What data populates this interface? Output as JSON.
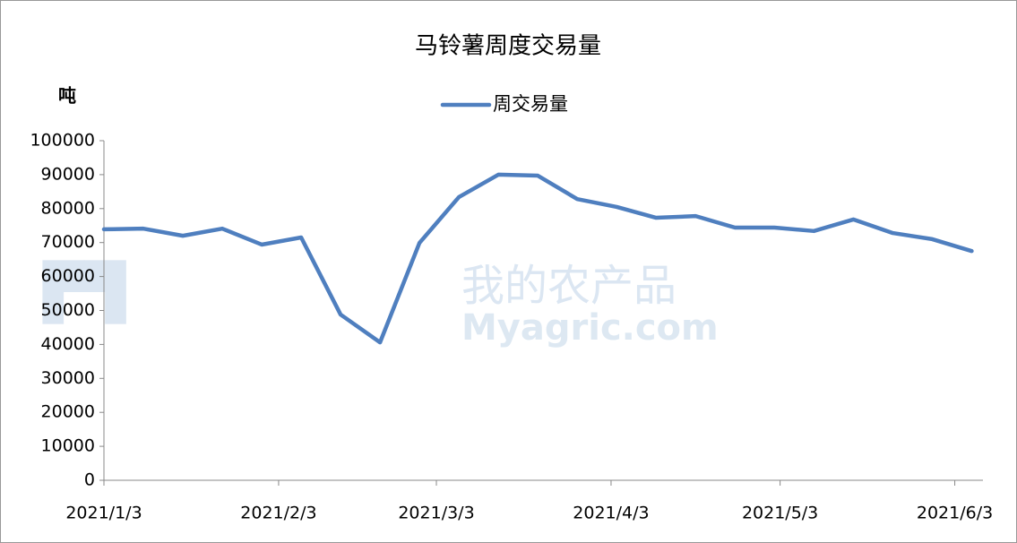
{
  "chart_data": {
    "type": "line",
    "title": "马铃薯周度交易量",
    "y_label": "吨",
    "watermark": [
      "我的农产品",
      "Myagric.com"
    ],
    "x": [
      "2021/1/3",
      "2021/1/10",
      "2021/1/17",
      "2021/1/24",
      "2021/1/31",
      "2021/2/7",
      "2021/2/14",
      "2021/2/21",
      "2021/2/28",
      "2021/3/7",
      "2021/3/14",
      "2021/3/21",
      "2021/3/28",
      "2021/4/4",
      "2021/4/11",
      "2021/4/18",
      "2021/4/25",
      "2021/5/2",
      "2021/5/9",
      "2021/5/16",
      "2021/5/23",
      "2021/5/30",
      "2021/6/6"
    ],
    "series": [
      {
        "name": "周交易量",
        "color": "#4f7fbf",
        "values": [
          73900,
          74100,
          72000,
          74100,
          69400,
          71500,
          48800,
          40600,
          69900,
          83400,
          90000,
          89700,
          82800,
          80500,
          77300,
          77800,
          74400,
          74400,
          73400,
          76800,
          72800,
          71000,
          67500
        ]
      }
    ],
    "xlim": [
      "2021/1/3",
      "2021/6/8"
    ],
    "xticks": [
      "2021/1/3",
      "2021/2/3",
      "2021/3/3",
      "2021/4/3",
      "2021/5/3",
      "2021/6/3"
    ],
    "ylim": [
      0,
      100000
    ],
    "yticks": [
      0,
      10000,
      20000,
      30000,
      40000,
      50000,
      60000,
      70000,
      80000,
      90000,
      100000
    ],
    "legend": "top"
  }
}
